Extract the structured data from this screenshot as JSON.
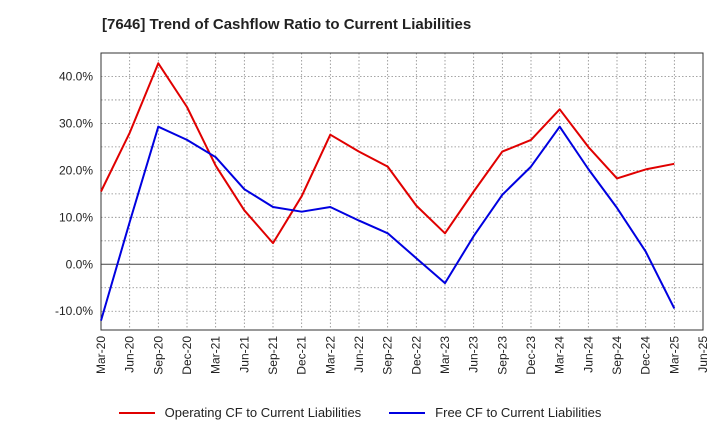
{
  "chart_data": {
    "type": "line",
    "title": "[7646]  Trend of Cashflow Ratio to Current Liabilities",
    "x_tick_labels": [
      "Mar-20",
      "Jun-20",
      "Sep-20",
      "Dec-20",
      "Mar-21",
      "Jun-21",
      "Sep-21",
      "Dec-21",
      "Mar-22",
      "Jun-22",
      "Sep-22",
      "Dec-22",
      "Mar-23",
      "Jun-23",
      "Sep-23",
      "Dec-23",
      "Mar-24",
      "Jun-24",
      "Sep-24",
      "Dec-24",
      "Mar-25",
      "Jun-25"
    ],
    "y_ticks": [
      -10,
      0,
      10,
      20,
      30,
      40
    ],
    "y_tick_labels": [
      "-10.0%",
      "0.0%",
      "10.0%",
      "20.0%",
      "30.0%",
      "40.0%"
    ],
    "ylim": [
      -14,
      45
    ],
    "grid": true,
    "legend_position": "bottom",
    "series": [
      {
        "name": "Operating CF to Current Liabilities",
        "color": "#e00000",
        "values": [
          15.5,
          28,
          42.8,
          33.5,
          21,
          11.5,
          4.5,
          14.5,
          27.6,
          24,
          20.8,
          12.5,
          6.6,
          15.5,
          24,
          26.5,
          33,
          25,
          18.3,
          20.2,
          21.4,
          null
        ]
      },
      {
        "name": "Free CF to Current Liabilities",
        "color": "#0000e0",
        "values": [
          -12,
          9,
          29.3,
          26.5,
          22.8,
          16,
          12.2,
          11.2,
          12.2,
          9.3,
          6.6,
          1.3,
          -4,
          6,
          14.8,
          20.8,
          29.3,
          20.3,
          12,
          2.7,
          -9.4,
          null
        ]
      }
    ]
  }
}
